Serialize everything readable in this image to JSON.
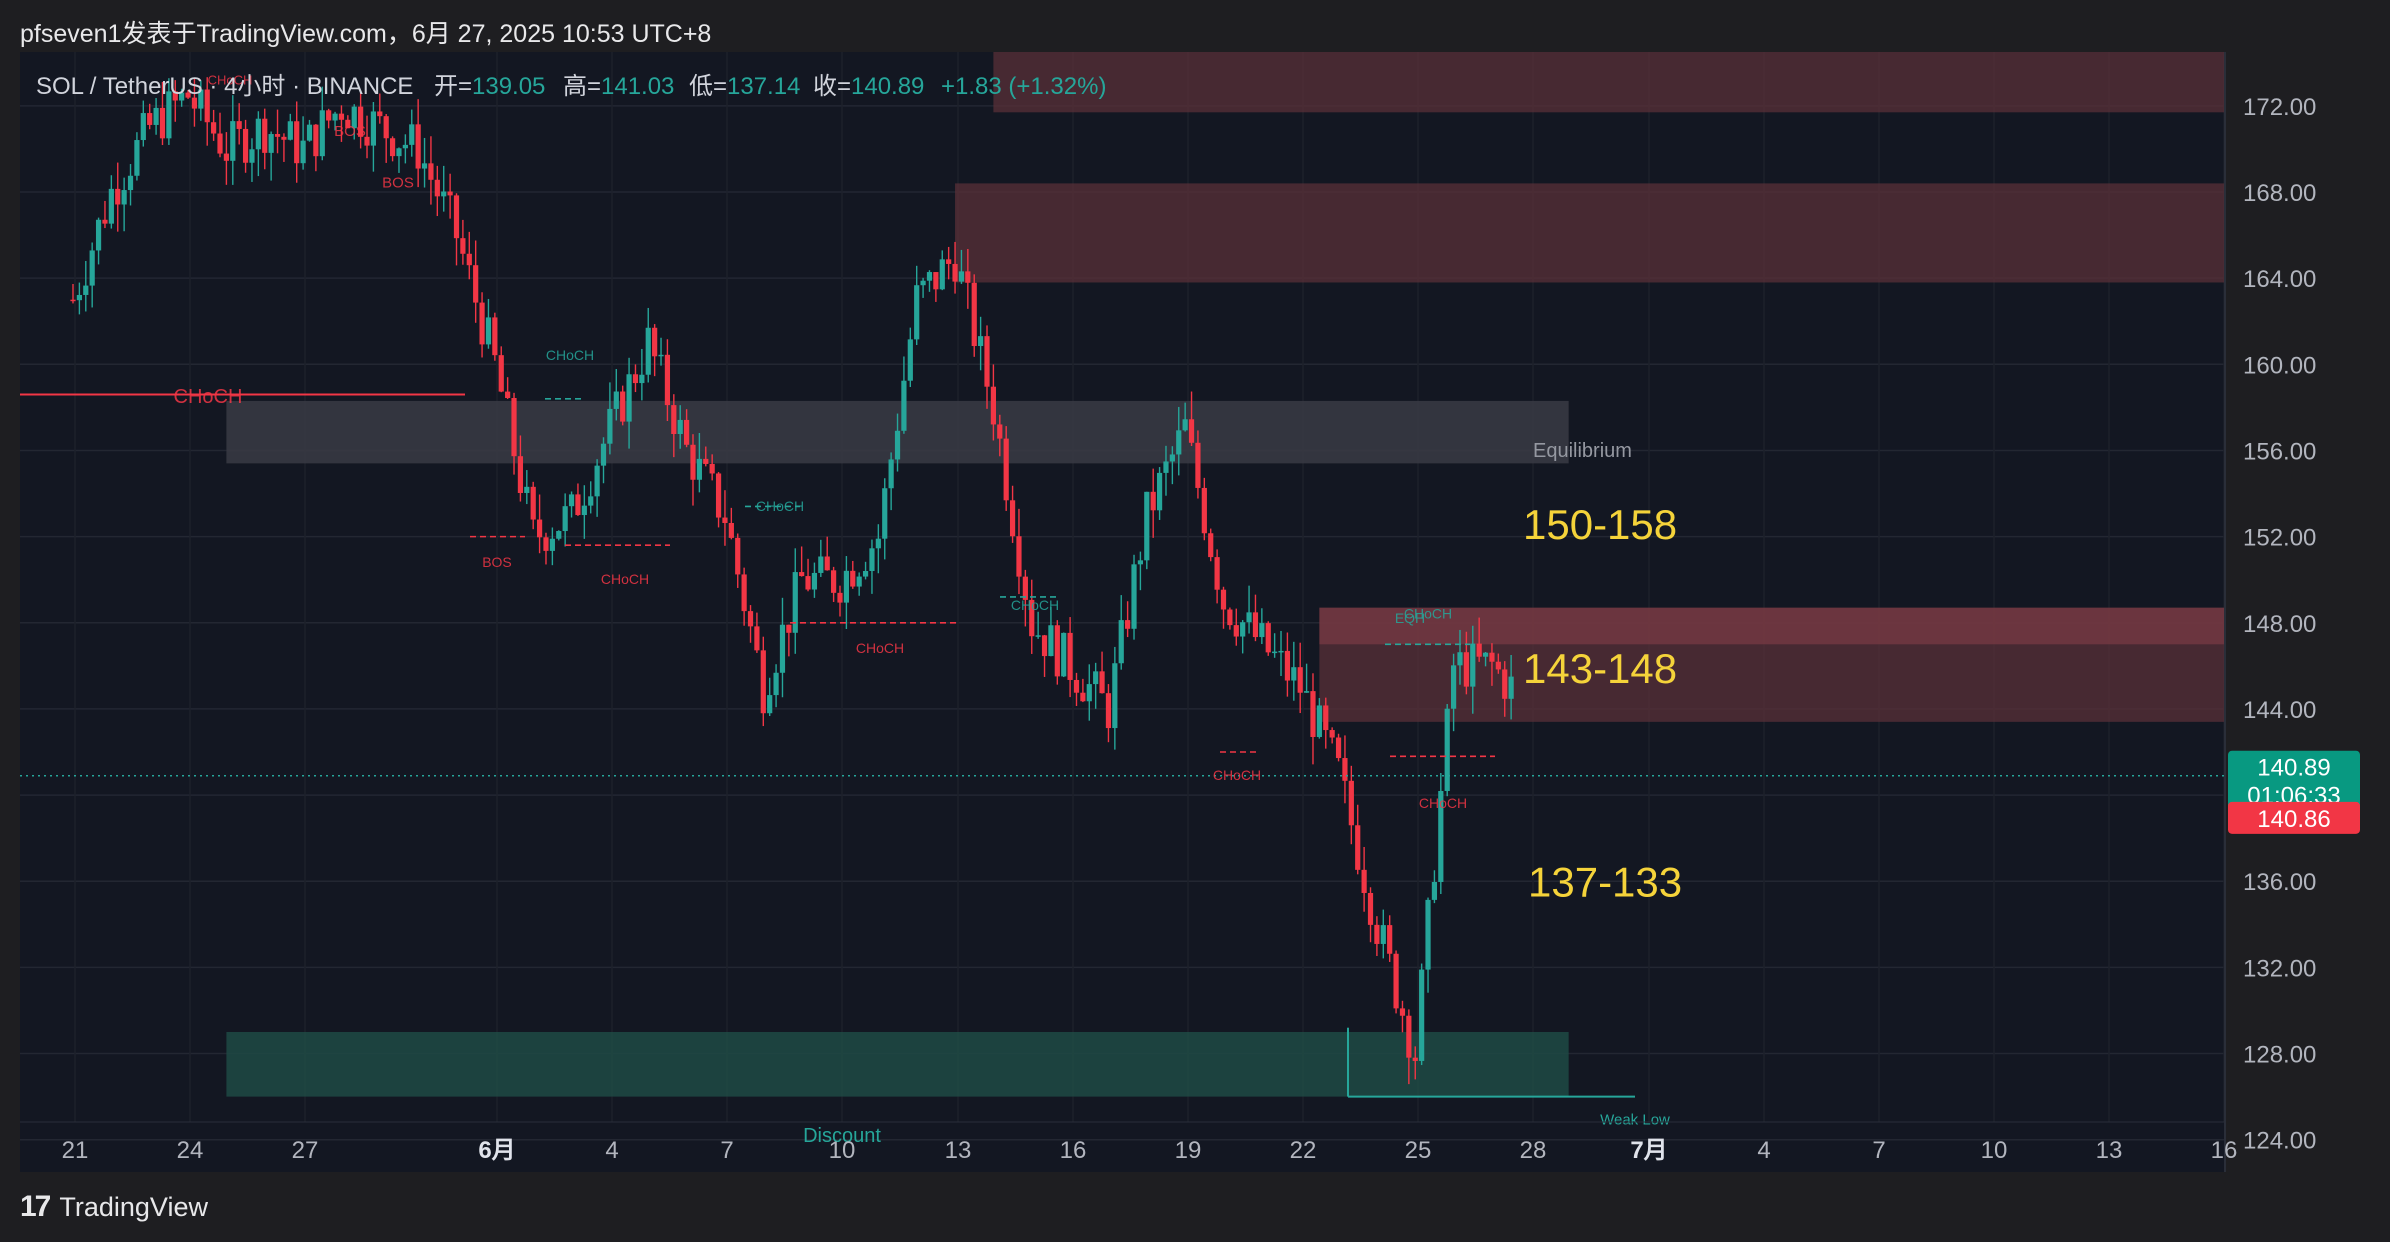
{
  "header": {
    "publish_line": "pfseven1发表于TradingView.com，6月 27, 2025 10:53 UTC+8"
  },
  "legend": {
    "symbol_line": "SOL / TetherUS · 4小时 · BINANCE",
    "open_label": "开=",
    "open_value": "139.05",
    "high_label": "高=",
    "high_value": "141.03",
    "low_label": "低=",
    "low_value": "137.14",
    "close_label": "收=",
    "close_value": "140.89",
    "change": "+1.83 (+1.32%)"
  },
  "footer": {
    "brand": "TradingView"
  },
  "colors": {
    "up": "#26a69a",
    "down": "#f23645",
    "background": "#131722",
    "outer": "#1e1e21",
    "premium_zone": "#5a3038",
    "equilibrium_zone": "#3a3b44",
    "discount_zone": "#1f4a44",
    "annotation_yellow": "#f5d33a"
  },
  "chart_data": {
    "type": "candlestick",
    "ylim": [
      122.5,
      174.5
    ],
    "y_ticks": [
      124,
      128,
      132,
      136,
      140,
      144,
      148,
      152,
      156,
      160,
      164,
      168,
      172
    ],
    "y_tick_labels": [
      "124.00",
      "128.00",
      "132.00",
      "136.00",
      "140.00",
      "144.00",
      "148.00",
      "152.00",
      "156.00",
      "160.00",
      "164.00",
      "168.00",
      "172.00"
    ],
    "x_ticks": [
      "21",
      "24",
      "27",
      "6月",
      "4",
      "7",
      "10",
      "13",
      "16",
      "19",
      "22",
      "25",
      "28",
      "7月",
      "4",
      "7",
      "10",
      "13",
      "16"
    ],
    "last_price": "140.89",
    "countdown": "01:06:33",
    "bid_price": "140.86",
    "zones": [
      {
        "name": "premium-zone-top",
        "ymin": 171.7,
        "ymax": 174.5,
        "start_day": 24,
        "end_day": 58
      },
      {
        "name": "supply-zone-164-168",
        "ymin": 163.8,
        "ymax": 168.4,
        "start_day": 23,
        "end_day": 58
      },
      {
        "name": "equilibrium-zone",
        "ymin": 155.4,
        "ymax": 158.3,
        "start_day": 4,
        "end_day": 39,
        "label": "Equilibrium"
      },
      {
        "name": "supply-zone-143-148",
        "ymin": 143.4,
        "ymax": 148.7,
        "start_day": 32.5,
        "end_day": 58
      },
      {
        "name": "discount-zone",
        "ymin": 126.0,
        "ymax": 129.0,
        "start_day": 4,
        "end_day": 39,
        "label": "Discount"
      }
    ],
    "annotations": [
      {
        "text": "150-158"
      },
      {
        "text": "143-148"
      },
      {
        "text": "137-133"
      }
    ],
    "structure_labels": [
      "CHoCH",
      "BOS",
      "BOS",
      "CHoCH",
      "CHoCH",
      "BOS",
      "CHoCH",
      "CHoCH",
      "CHoCH",
      "CHoCH",
      "CHoCH",
      "EQH",
      "CHoCH",
      "CHoCH",
      "Weak Low"
    ],
    "weak_low": {
      "label": "Weak Low",
      "value": 126.0
    },
    "series": [
      {
        "day": 0,
        "price": 163
      },
      {
        "day": 1,
        "price": 168
      },
      {
        "day": 2,
        "price": 171
      },
      {
        "day": 3,
        "price": 172.5
      },
      {
        "day": 4,
        "price": 170
      },
      {
        "day": 5,
        "price": 171
      },
      {
        "day": 6,
        "price": 170
      },
      {
        "day": 7,
        "price": 172
      },
      {
        "day": 8,
        "price": 171
      },
      {
        "day": 9,
        "price": 170
      },
      {
        "day": 10,
        "price": 166
      },
      {
        "day": 11,
        "price": 160
      },
      {
        "day": 12,
        "price": 152
      },
      {
        "day": 13,
        "price": 153
      },
      {
        "day": 14,
        "price": 157
      },
      {
        "day": 15,
        "price": 161
      },
      {
        "day": 16,
        "price": 156
      },
      {
        "day": 17,
        "price": 153
      },
      {
        "day": 18,
        "price": 145
      },
      {
        "day": 19,
        "price": 150
      },
      {
        "day": 20,
        "price": 150
      },
      {
        "day": 21,
        "price": 152
      },
      {
        "day": 22,
        "price": 163
      },
      {
        "day": 23,
        "price": 165
      },
      {
        "day": 24,
        "price": 158
      },
      {
        "day": 25,
        "price": 148
      },
      {
        "day": 26,
        "price": 146
      },
      {
        "day": 27,
        "price": 144
      },
      {
        "day": 28,
        "price": 153
      },
      {
        "day": 29,
        "price": 157
      },
      {
        "day": 30,
        "price": 149
      },
      {
        "day": 31,
        "price": 147
      },
      {
        "day": 32,
        "price": 145
      },
      {
        "day": 33,
        "price": 141
      },
      {
        "day": 34,
        "price": 134
      },
      {
        "day": 35,
        "price": 128
      },
      {
        "day": 36,
        "price": 146
      },
      {
        "day": 37,
        "price": 146
      },
      {
        "day": 38,
        "price": 144
      },
      {
        "day": 38.4,
        "price": 140.9
      }
    ]
  }
}
